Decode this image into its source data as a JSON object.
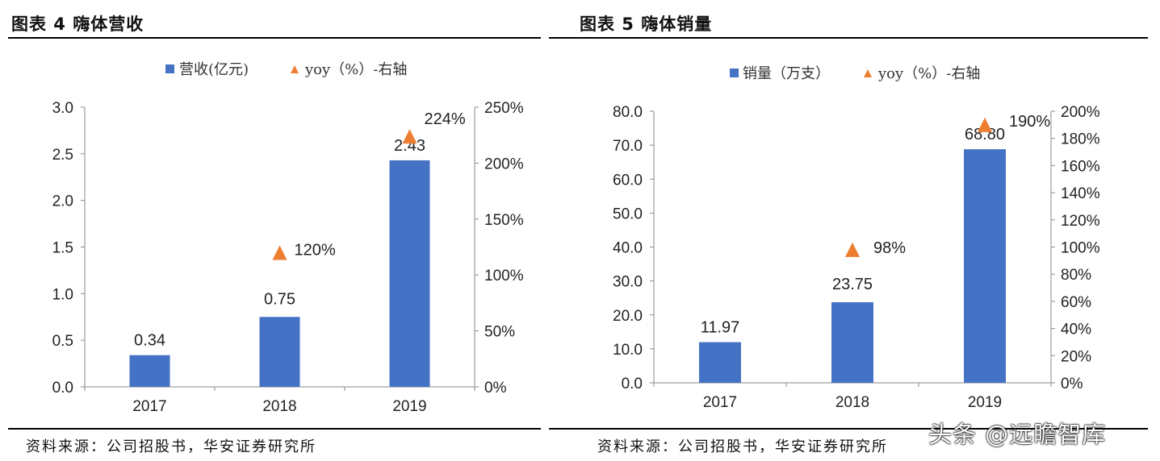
{
  "panels": [
    {
      "title": "图表 4 嗨体营收",
      "source": "资料来源：公司招股书，华安证券研究所",
      "chart_data": {
        "type": "bar",
        "categories": [
          "2017",
          "2018",
          "2019"
        ],
        "series": [
          {
            "name": "营收(亿元)",
            "axis": "left",
            "values": [
              0.34,
              0.75,
              2.43
            ],
            "labels": [
              "0.34",
              "0.75",
              "2.43"
            ],
            "color": "#4472C4"
          },
          {
            "name": "yoy（%）-右轴",
            "axis": "right",
            "marker": "triangle",
            "values": [
              null,
              120,
              224
            ],
            "labels": [
              "",
              "120%",
              "224%"
            ],
            "color": "#ED7D31"
          }
        ],
        "ylim": [
          0,
          3.0
        ],
        "yticks": [
          "0.0",
          "0.5",
          "1.0",
          "1.5",
          "2.0",
          "2.5",
          "3.0"
        ],
        "y2lim": [
          0,
          250
        ],
        "y2ticks": [
          "0%",
          "50%",
          "100%",
          "150%",
          "200%",
          "250%"
        ],
        "grid": false,
        "legend": "top"
      }
    },
    {
      "title": "图表 5 嗨体销量",
      "source": "资料来源：公司招股书，华安证券研究所",
      "chart_data": {
        "type": "bar",
        "categories": [
          "2017",
          "2018",
          "2019"
        ],
        "series": [
          {
            "name": "销量（万支）",
            "axis": "left",
            "values": [
              11.97,
              23.75,
              68.8
            ],
            "labels": [
              "11.97",
              "23.75",
              "68.80"
            ],
            "color": "#4472C4"
          },
          {
            "name": "yoy（%）-右轴",
            "axis": "right",
            "marker": "triangle",
            "values": [
              null,
              98,
              190
            ],
            "labels": [
              "",
              "98%",
              "190%"
            ],
            "color": "#ED7D31"
          }
        ],
        "ylim": [
          0,
          80
        ],
        "yticks": [
          "0.0",
          "10.0",
          "20.0",
          "30.0",
          "40.0",
          "50.0",
          "60.0",
          "70.0",
          "80.0"
        ],
        "y2lim": [
          0,
          200
        ],
        "y2ticks": [
          "0%",
          "20%",
          "40%",
          "60%",
          "80%",
          "100%",
          "120%",
          "140%",
          "160%",
          "180%",
          "200%"
        ],
        "grid": false,
        "legend": "top"
      }
    }
  ],
  "watermark": "头条 @远瞻智库"
}
